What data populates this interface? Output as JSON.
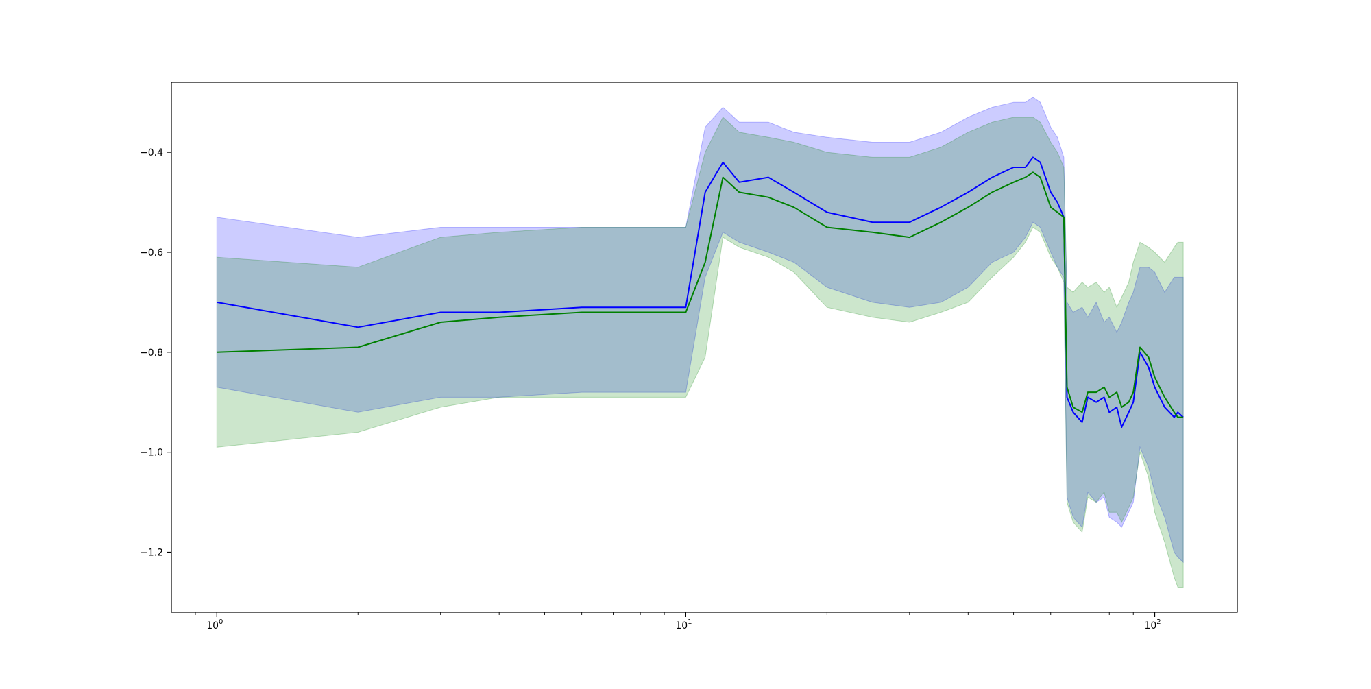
{
  "chart_data": {
    "type": "line",
    "title": "",
    "xlabel": "",
    "ylabel": "",
    "xscale": "log",
    "xlim": [
      0.8,
      150
    ],
    "ylim": [
      -1.32,
      -0.26
    ],
    "grid": false,
    "x_ticks": [
      {
        "value": 1,
        "base": "10",
        "exp": "0"
      },
      {
        "value": 10,
        "base": "10",
        "exp": "1"
      },
      {
        "value": 100,
        "base": "10",
        "exp": "2"
      }
    ],
    "y_ticks": [
      {
        "value": -0.4,
        "label": "−0.4"
      },
      {
        "value": -0.6,
        "label": "−0.6"
      },
      {
        "value": -0.8,
        "label": "−0.8"
      },
      {
        "value": -1.0,
        "label": "−1.0"
      },
      {
        "value": -1.2,
        "label": "−1.2"
      }
    ],
    "series": [
      {
        "color": "#0000ff",
        "band_color": "#0000ff",
        "band_opacity": 0.2,
        "x": [
          1,
          2,
          3,
          4,
          6,
          10,
          11,
          12,
          13,
          15,
          17,
          20,
          25,
          30,
          35,
          40,
          45,
          50,
          53,
          55,
          57,
          60,
          62,
          64,
          65,
          67,
          70,
          72,
          75,
          78,
          80,
          83,
          85,
          88,
          90,
          93,
          97,
          100,
          105,
          110,
          112,
          115
        ],
        "y": [
          -0.7,
          -0.75,
          -0.72,
          -0.72,
          -0.71,
          -0.71,
          -0.48,
          -0.42,
          -0.46,
          -0.45,
          -0.48,
          -0.52,
          -0.54,
          -0.54,
          -0.51,
          -0.48,
          -0.45,
          -0.43,
          -0.43,
          -0.41,
          -0.42,
          -0.48,
          -0.5,
          -0.53,
          -0.89,
          -0.92,
          -0.94,
          -0.89,
          -0.9,
          -0.89,
          -0.92,
          -0.91,
          -0.95,
          -0.92,
          -0.9,
          -0.8,
          -0.83,
          -0.87,
          -0.91,
          -0.93,
          -0.92,
          -0.93
        ],
        "upper": [
          -0.53,
          -0.57,
          -0.55,
          -0.55,
          -0.55,
          -0.55,
          -0.35,
          -0.31,
          -0.34,
          -0.34,
          -0.36,
          -0.37,
          -0.38,
          -0.38,
          -0.36,
          -0.33,
          -0.31,
          -0.3,
          -0.3,
          -0.29,
          -0.3,
          -0.35,
          -0.37,
          -0.41,
          -0.7,
          -0.72,
          -0.71,
          -0.73,
          -0.7,
          -0.74,
          -0.73,
          -0.76,
          -0.74,
          -0.7,
          -0.68,
          -0.63,
          -0.63,
          -0.64,
          -0.68,
          -0.65,
          -0.65,
          -0.65
        ],
        "lower": [
          -0.87,
          -0.92,
          -0.89,
          -0.89,
          -0.88,
          -0.88,
          -0.65,
          -0.56,
          -0.58,
          -0.6,
          -0.62,
          -0.67,
          -0.7,
          -0.71,
          -0.7,
          -0.67,
          -0.62,
          -0.6,
          -0.57,
          -0.54,
          -0.55,
          -0.6,
          -0.63,
          -0.65,
          -1.09,
          -1.13,
          -1.15,
          -1.08,
          -1.1,
          -1.09,
          -1.13,
          -1.14,
          -1.15,
          -1.12,
          -1.1,
          -0.99,
          -1.03,
          -1.08,
          -1.13,
          -1.2,
          -1.21,
          -1.22
        ]
      },
      {
        "color": "#008000",
        "band_color": "#008000",
        "band_opacity": 0.2,
        "x": [
          1,
          2,
          3,
          4,
          6,
          10,
          11,
          12,
          13,
          15,
          17,
          20,
          25,
          30,
          35,
          40,
          45,
          50,
          53,
          55,
          57,
          60,
          62,
          64,
          65,
          67,
          70,
          72,
          75,
          78,
          80,
          83,
          85,
          88,
          90,
          93,
          97,
          100,
          105,
          110,
          112,
          115
        ],
        "y": [
          -0.8,
          -0.79,
          -0.74,
          -0.73,
          -0.72,
          -0.72,
          -0.62,
          -0.45,
          -0.48,
          -0.49,
          -0.51,
          -0.55,
          -0.56,
          -0.57,
          -0.54,
          -0.51,
          -0.48,
          -0.46,
          -0.45,
          -0.44,
          -0.45,
          -0.51,
          -0.52,
          -0.53,
          -0.87,
          -0.91,
          -0.92,
          -0.88,
          -0.88,
          -0.87,
          -0.89,
          -0.88,
          -0.91,
          -0.9,
          -0.88,
          -0.79,
          -0.81,
          -0.85,
          -0.89,
          -0.92,
          -0.93,
          -0.93
        ],
        "upper": [
          -0.61,
          -0.63,
          -0.57,
          -0.56,
          -0.55,
          -0.55,
          -0.4,
          -0.33,
          -0.36,
          -0.37,
          -0.38,
          -0.4,
          -0.41,
          -0.41,
          -0.39,
          -0.36,
          -0.34,
          -0.33,
          -0.33,
          -0.33,
          -0.34,
          -0.38,
          -0.4,
          -0.43,
          -0.67,
          -0.68,
          -0.66,
          -0.67,
          -0.66,
          -0.68,
          -0.67,
          -0.71,
          -0.69,
          -0.66,
          -0.62,
          -0.58,
          -0.59,
          -0.6,
          -0.62,
          -0.59,
          -0.58,
          -0.58
        ],
        "lower": [
          -0.99,
          -0.96,
          -0.91,
          -0.89,
          -0.89,
          -0.89,
          -0.81,
          -0.57,
          -0.59,
          -0.61,
          -0.64,
          -0.71,
          -0.73,
          -0.74,
          -0.72,
          -0.7,
          -0.65,
          -0.61,
          -0.58,
          -0.55,
          -0.56,
          -0.61,
          -0.63,
          -0.66,
          -1.1,
          -1.14,
          -1.16,
          -1.09,
          -1.1,
          -1.08,
          -1.12,
          -1.12,
          -1.14,
          -1.11,
          -1.09,
          -1.0,
          -1.05,
          -1.12,
          -1.18,
          -1.25,
          -1.27,
          -1.27
        ]
      }
    ]
  }
}
